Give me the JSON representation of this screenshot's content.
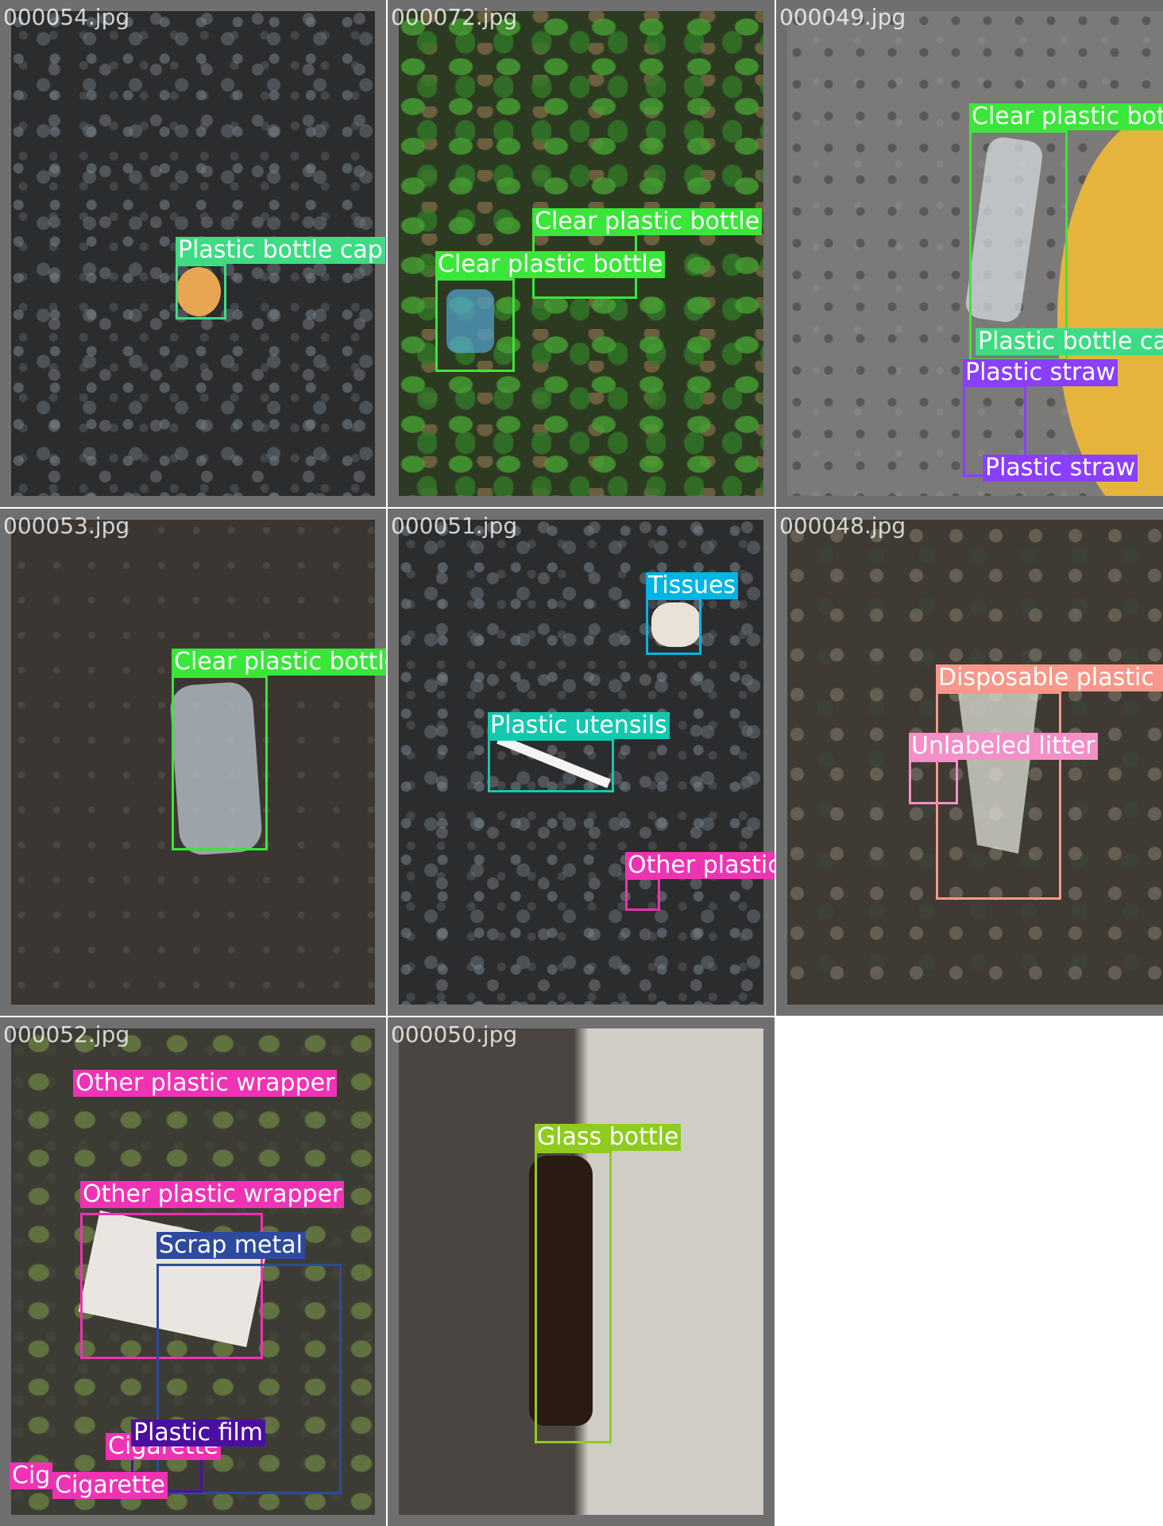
{
  "tiles": [
    {
      "filename": "000054.jpg",
      "labels": [
        {
          "text": "Plastic bottle cap",
          "color": "#3ddc84"
        }
      ]
    },
    {
      "filename": "000072.jpg",
      "labels": [
        {
          "text": "Clear plastic bottle",
          "color": "#39e639"
        },
        {
          "text": "Clear plastic bottle",
          "color": "#39e639"
        }
      ]
    },
    {
      "filename": "000049.jpg",
      "labels": [
        {
          "text": "Clear plastic bott",
          "color": "#39e639"
        },
        {
          "text": "Plastic bottle ca",
          "color": "#3ddc84"
        },
        {
          "text": "Plastic straw",
          "color": "#8a3ffc"
        },
        {
          "text": "Plastic straw",
          "color": "#8a3ffc"
        }
      ]
    },
    {
      "filename": "000053.jpg",
      "labels": [
        {
          "text": "Clear plastic bottle",
          "color": "#39e639"
        }
      ]
    },
    {
      "filename": "000051.jpg",
      "labels": [
        {
          "text": "Tissues",
          "color": "#00b4e6"
        },
        {
          "text": "Plastic utensils",
          "color": "#14c8b0"
        },
        {
          "text": "Other plastic wrapper",
          "color": "#f032b4"
        }
      ]
    },
    {
      "filename": "000048.jpg",
      "labels": [
        {
          "text": "Disposable plastic c",
          "color": "#f7988a"
        },
        {
          "text": "Unlabeled litter",
          "color": "#f48fc8"
        }
      ]
    },
    {
      "filename": "000052.jpg",
      "labels": [
        {
          "text": "Other plastic wrapper",
          "color": "#f032b4"
        },
        {
          "text": "Other plastic wrapper",
          "color": "#f032b4"
        },
        {
          "text": "Scrap metal",
          "color": "#2e4a9e"
        },
        {
          "text": "Cigarette",
          "color": "#f032b4"
        },
        {
          "text": "Plastic film",
          "color": "#4b0fa0"
        },
        {
          "text": "Cig",
          "color": "#f032b4"
        },
        {
          "text": "Cigarette",
          "color": "#f032b4"
        }
      ]
    },
    {
      "filename": "000050.jpg",
      "labels": [
        {
          "text": "Glass bottle",
          "color": "#8fcc1e"
        }
      ]
    }
  ]
}
